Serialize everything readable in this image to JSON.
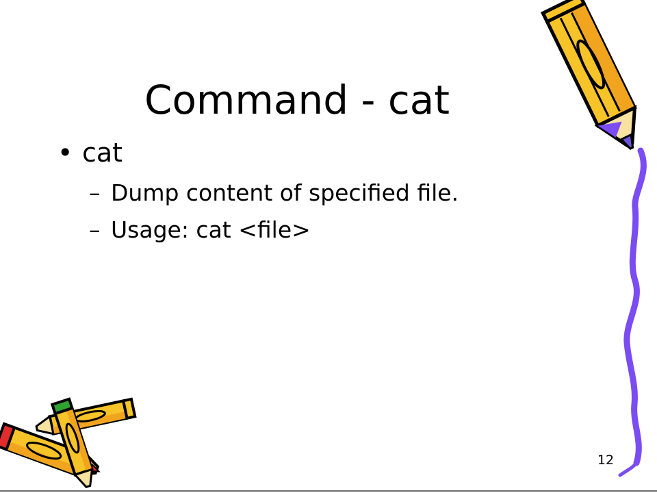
{
  "slide": {
    "title": "Command - cat",
    "bullets": [
      {
        "marker": "•",
        "text": "cat",
        "sub": [
          {
            "marker": "–",
            "text": "Dump content of specified file."
          },
          {
            "marker": "–",
            "text": "Usage: cat <file>"
          }
        ]
      }
    ],
    "page_number": "12"
  },
  "colors": {
    "pencil_yellow": "#f6c428",
    "pencil_orange": "#f1a51e",
    "outline": "#000000",
    "border_purple": "#7b4cf2",
    "eraser_green": "#2fa331",
    "eraser_red": "#e02c2c"
  },
  "decorations": {
    "top_right": "pencil-icon",
    "bottom_left": "crossed-pencils-icon",
    "right_edge": "wavy-border"
  }
}
